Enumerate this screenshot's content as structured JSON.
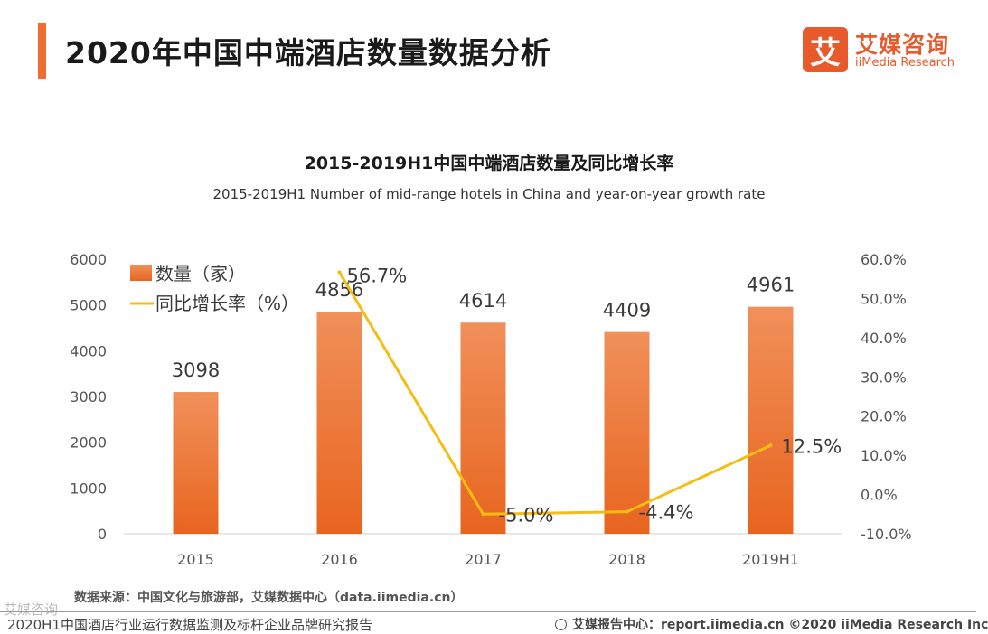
{
  "page": {
    "title": "2020年中国中端酒店数量数据分析",
    "logo_mark": "艾",
    "logo_cn": "艾媒咨询",
    "logo_en": "iiMedia Research",
    "source": "数据来源：中国文化与旅游部，艾媒数据中心（data.iimedia.cn）",
    "footer_left": "2020H1中国酒店行业运行数据监测及标杆企业品牌研究报告",
    "footer_right": "艾媒报告中心：report.iimedia.cn   ©2020  iiMedia Research  Inc",
    "watermark": "艾媒咨询"
  },
  "colors": {
    "accent": "#f06d32",
    "bar_top": "#f0905a",
    "bar_bottom": "#e8651f",
    "line": "#f5bd13",
    "axis_text": "#555555"
  },
  "chart_data": {
    "type": "bar",
    "title": "2015-2019H1中国中端酒店数量及同比增长率",
    "subtitle": "2015-2019H1 Number of mid-range hotels in China and year-on-year growth rate",
    "categories": [
      "2015",
      "2016",
      "2017",
      "2018",
      "2019H1"
    ],
    "series": [
      {
        "name": "数量（家）",
        "type": "bar",
        "axis": "left",
        "values": [
          3098,
          4856,
          4614,
          4409,
          4961
        ],
        "labels": [
          "3098",
          "4856",
          "4614",
          "4409",
          "4961"
        ]
      },
      {
        "name": "同比增长率（%）",
        "type": "line",
        "axis": "right",
        "values": [
          null,
          56.7,
          -5.0,
          -4.4,
          12.5
        ],
        "labels": [
          "",
          "56.7%",
          "-5.0%",
          "-4.4%",
          "12.5%"
        ]
      }
    ],
    "y_left": {
      "min": 0,
      "max": 6000,
      "ticks": [
        "0",
        "1000",
        "2000",
        "3000",
        "4000",
        "5000",
        "6000"
      ]
    },
    "y_right": {
      "min": -10,
      "max": 60,
      "ticks": [
        "-10.0%",
        "0.0%",
        "10.0%",
        "20.0%",
        "30.0%",
        "40.0%",
        "50.0%",
        "60.0%"
      ]
    },
    "legend": "top-left",
    "grid": false
  }
}
